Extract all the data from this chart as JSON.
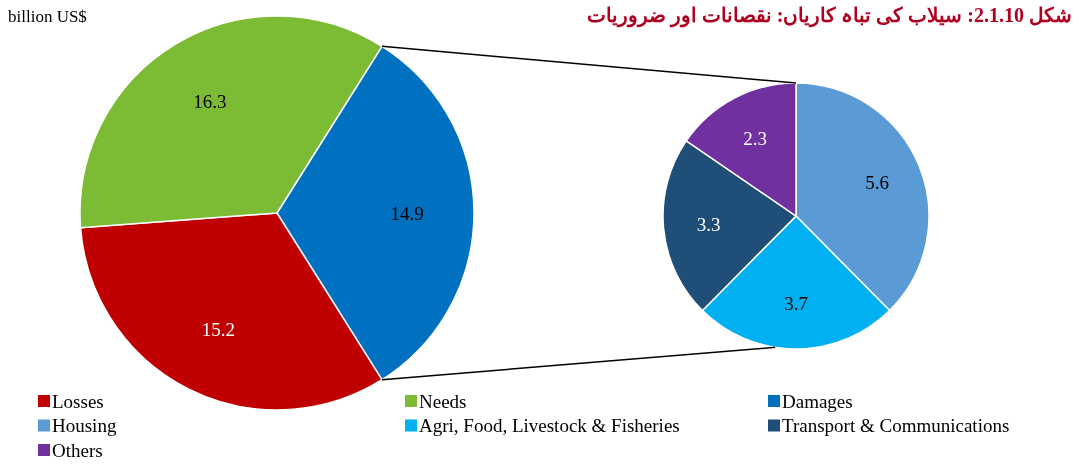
{
  "chart_data": [
    {
      "type": "pie",
      "title": "شکل 2.1.10: سیلاب کی تباہ کاریاں: نقصانات اور ضروریات",
      "subtitle": "billion US$",
      "categories": [
        "Losses",
        "Needs",
        "Damages"
      ],
      "values": [
        15.2,
        16.3,
        14.9
      ],
      "colors": [
        "#c00000",
        "#7cbb34",
        "#0070c0"
      ],
      "data_labels": true,
      "legend": "bottom"
    },
    {
      "type": "pie",
      "categories": [
        "Housing",
        "Agri, Food, Livestock & Fisheries",
        "Transport & Communications",
        "Others"
      ],
      "values": [
        5.6,
        3.7,
        3.3,
        2.3
      ],
      "colors": [
        "#5b9bd5",
        "#00b0f0",
        "#1f4e79",
        "#7030a0"
      ],
      "data_labels": true,
      "legend": "bottom"
    }
  ]
}
